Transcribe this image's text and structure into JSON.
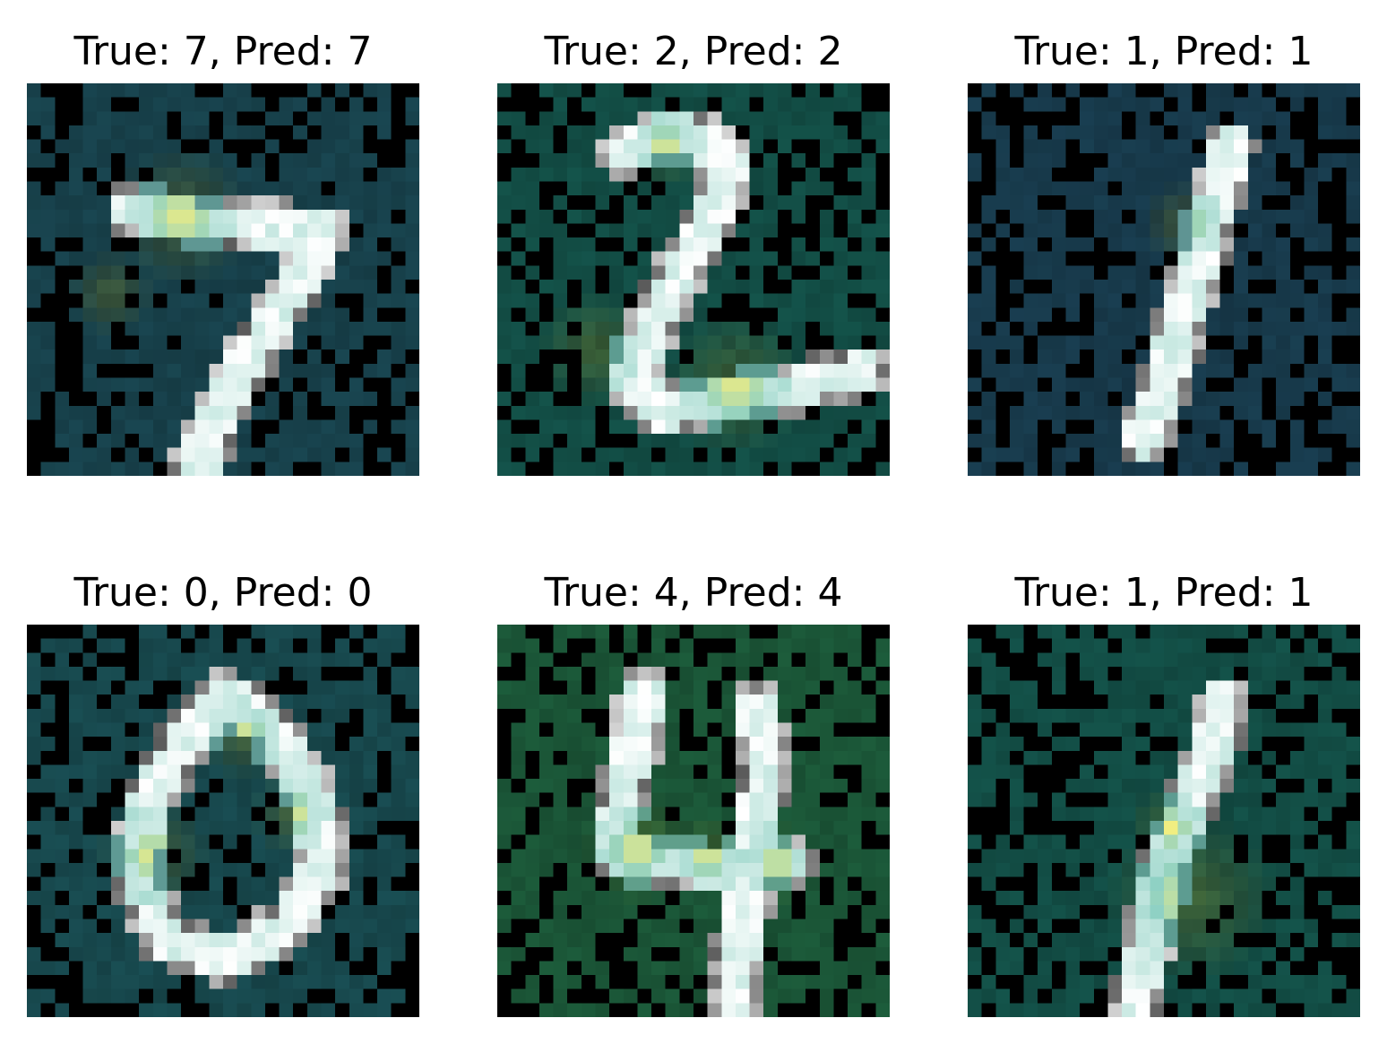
{
  "figure": {
    "panels": [
      {
        "title": "True: 7, Pred: 7",
        "true_label": "7",
        "pred_label": "7",
        "digit": "7",
        "overlay_tint": "#17404a"
      },
      {
        "title": "True: 2, Pred: 2",
        "true_label": "2",
        "pred_label": "2",
        "digit": "2",
        "overlay_tint": "#124c44"
      },
      {
        "title": "True: 1, Pred: 1",
        "true_label": "1",
        "pred_label": "1",
        "digit": "1",
        "overlay_tint": "#17394a"
      },
      {
        "title": "True: 0, Pred: 0",
        "true_label": "0",
        "pred_label": "0",
        "digit": "0",
        "overlay_tint": "#17474c"
      },
      {
        "title": "True: 4, Pred: 4",
        "true_label": "4",
        "pred_label": "4",
        "digit": "4",
        "overlay_tint": "#1a5436"
      },
      {
        "title": "True: 1, Pred: 1",
        "true_label": "1",
        "pred_label": "1",
        "digit": "1",
        "overlay_tint": "#124c44"
      }
    ],
    "colors": {
      "background": "#000000",
      "digit_stroke": "#ffffff",
      "heat_low": "#8fd1c4",
      "heat_high": "#f2ee80"
    }
  }
}
